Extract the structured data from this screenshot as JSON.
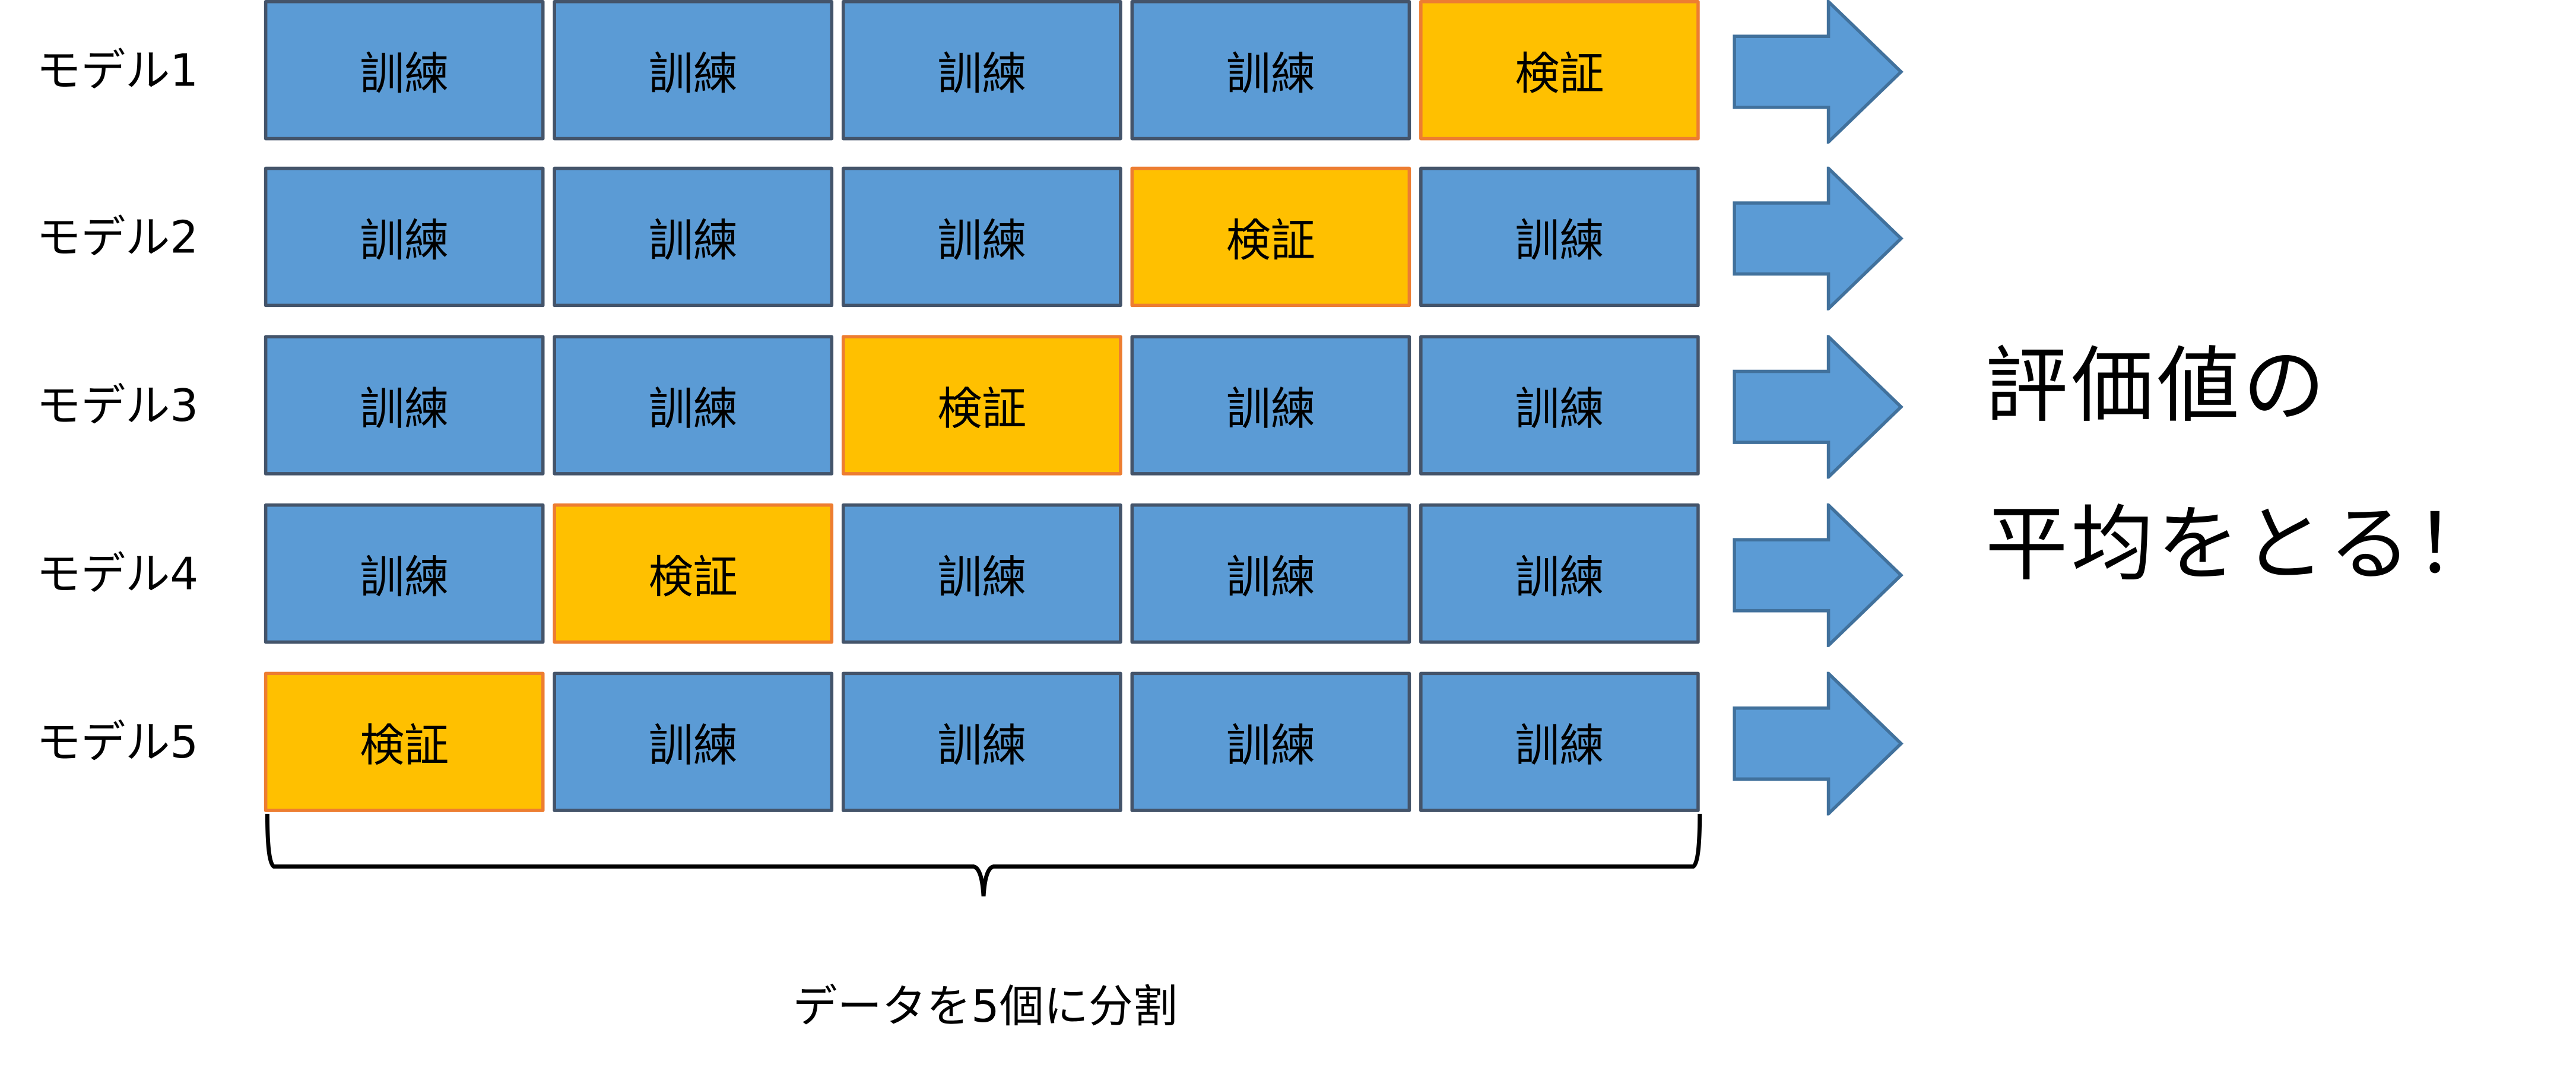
{
  "colors": {
    "train": "#5B9BD5",
    "train_border": "#44546A",
    "validation": "#FFC000",
    "validation_border": "#ED7D31",
    "arrow": "#5B9BD5",
    "arrow_border": "#41719C"
  },
  "rows": [
    {
      "label": "モデル1",
      "cells": [
        "訓練",
        "訓練",
        "訓練",
        "訓練",
        "検証"
      ]
    },
    {
      "label": "モデル2",
      "cells": [
        "訓練",
        "訓練",
        "訓練",
        "検証",
        "訓練"
      ]
    },
    {
      "label": "モデル3",
      "cells": [
        "訓練",
        "訓練",
        "検証",
        "訓練",
        "訓練"
      ]
    },
    {
      "label": "モデル4",
      "cells": [
        "訓練",
        "検証",
        "訓練",
        "訓練",
        "訓練"
      ]
    },
    {
      "label": "モデル5",
      "cells": [
        "検証",
        "訓練",
        "訓練",
        "訓練",
        "訓練"
      ]
    }
  ],
  "result": {
    "line1": "評価値の",
    "line2": "平均をとる！"
  },
  "split_label": "データを5個に分割"
}
